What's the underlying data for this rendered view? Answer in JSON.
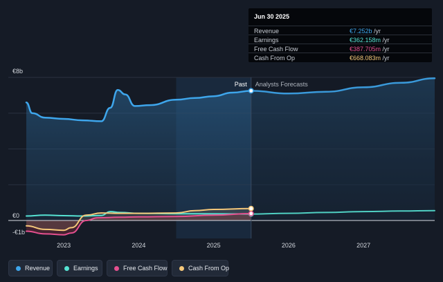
{
  "chart_data": {
    "type": "line",
    "y_unit": "€",
    "ytick_labels": [
      "€8b",
      "€0",
      "-€1b"
    ],
    "ylim": [
      -1,
      8.2
    ],
    "xlim": [
      2022.5,
      2027.95
    ],
    "x_ticks": [
      2023,
      2024,
      2025,
      2026,
      2027
    ],
    "x_tick_labels": [
      "2023",
      "2024",
      "2025",
      "2026",
      "2027"
    ],
    "divider_x": 2025.5,
    "past_label": "Past",
    "forecast_label": "Analysts Forecasts",
    "highlight_range": [
      2024.5,
      2025.5
    ],
    "series": [
      {
        "name": "Revenue",
        "color": "#3ea6ec",
        "fill": true,
        "past": [
          [
            2022.5,
            6.6
          ],
          [
            2022.58,
            6.0
          ],
          [
            2022.75,
            5.75
          ],
          [
            2023.0,
            5.68
          ],
          [
            2023.25,
            5.6
          ],
          [
            2023.5,
            5.55
          ],
          [
            2023.62,
            6.3
          ],
          [
            2023.72,
            7.3
          ],
          [
            2023.82,
            7.05
          ],
          [
            2023.95,
            6.4
          ],
          [
            2024.15,
            6.45
          ],
          [
            2024.5,
            6.75
          ],
          [
            2024.75,
            6.85
          ],
          [
            2025.0,
            6.95
          ],
          [
            2025.25,
            7.15
          ],
          [
            2025.5,
            7.252
          ]
        ],
        "forecast": [
          [
            2025.5,
            7.252
          ],
          [
            2026.0,
            7.1
          ],
          [
            2026.5,
            7.2
          ],
          [
            2027.0,
            7.45
          ],
          [
            2027.5,
            7.7
          ],
          [
            2027.95,
            7.95
          ]
        ]
      },
      {
        "name": "Earnings",
        "color": "#56e3d3",
        "fill": false,
        "past": [
          [
            2022.5,
            0.25
          ],
          [
            2022.75,
            0.3
          ],
          [
            2023.0,
            0.27
          ],
          [
            2023.25,
            0.25
          ],
          [
            2023.5,
            0.28
          ],
          [
            2023.62,
            0.5
          ],
          [
            2023.75,
            0.45
          ],
          [
            2024.0,
            0.4
          ],
          [
            2024.5,
            0.38
          ],
          [
            2025.0,
            0.37
          ],
          [
            2025.5,
            0.362
          ]
        ],
        "forecast": [
          [
            2025.5,
            0.362
          ],
          [
            2026.0,
            0.4
          ],
          [
            2026.5,
            0.45
          ],
          [
            2027.0,
            0.5
          ],
          [
            2027.5,
            0.53
          ],
          [
            2027.95,
            0.55
          ]
        ]
      },
      {
        "name": "Free Cash Flow",
        "color": "#e5508f",
        "fill": false,
        "past": [
          [
            2022.5,
            -0.6
          ],
          [
            2022.75,
            -0.75
          ],
          [
            2023.0,
            -0.8
          ],
          [
            2023.1,
            -0.7
          ],
          [
            2023.3,
            0.0
          ],
          [
            2023.45,
            0.15
          ],
          [
            2023.75,
            0.18
          ],
          [
            2024.0,
            0.2
          ],
          [
            2024.5,
            0.22
          ],
          [
            2025.0,
            0.3
          ],
          [
            2025.5,
            0.388
          ]
        ],
        "forecast": []
      },
      {
        "name": "Cash From Op",
        "color": "#f5c87a",
        "fill": false,
        "past": [
          [
            2022.5,
            -0.3
          ],
          [
            2022.75,
            -0.5
          ],
          [
            2023.0,
            -0.55
          ],
          [
            2023.1,
            -0.4
          ],
          [
            2023.3,
            0.3
          ],
          [
            2023.5,
            0.42
          ],
          [
            2023.75,
            0.4
          ],
          [
            2024.0,
            0.4
          ],
          [
            2024.5,
            0.42
          ],
          [
            2024.75,
            0.55
          ],
          [
            2025.0,
            0.62
          ],
          [
            2025.5,
            0.668
          ]
        ],
        "forecast": []
      }
    ]
  },
  "tooltip": {
    "date": "Jun 30 2025",
    "rows": [
      {
        "label": "Revenue",
        "value": "€7.252b",
        "unit": " /yr",
        "color": "#3ea6ec"
      },
      {
        "label": "Earnings",
        "value": "€362.158m",
        "unit": " /yr",
        "color": "#56e3d3"
      },
      {
        "label": "Free Cash Flow",
        "value": "€387.705m",
        "unit": " /yr",
        "color": "#e5508f"
      },
      {
        "label": "Cash From Op",
        "value": "€668.083m",
        "unit": " /yr",
        "color": "#f5c87a"
      }
    ]
  },
  "legend": [
    {
      "label": "Revenue",
      "color": "#3ea6ec"
    },
    {
      "label": "Earnings",
      "color": "#56e3d3"
    },
    {
      "label": "Free Cash Flow",
      "color": "#e5508f"
    },
    {
      "label": "Cash From Op",
      "color": "#f5c87a"
    }
  ]
}
